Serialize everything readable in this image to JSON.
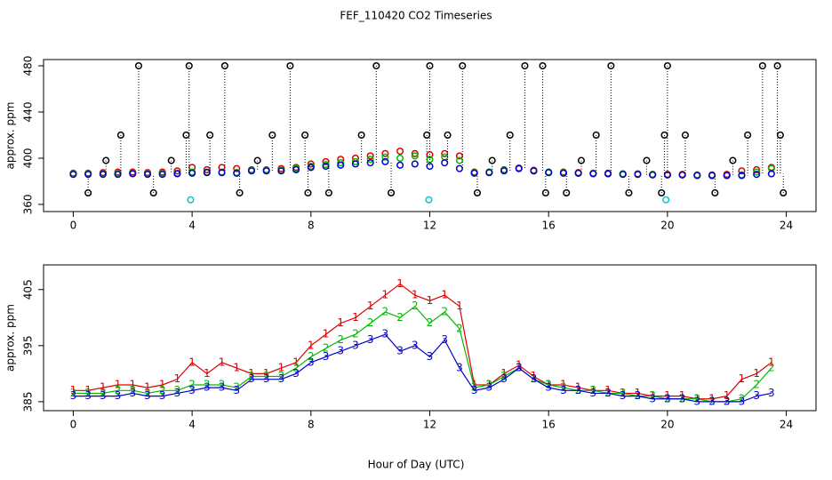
{
  "chart_data": [
    {
      "type": "scatter",
      "title": "FEF_110420  CO2 Timeseries",
      "y_label": "approx. ppm",
      "x": [
        0,
        0.5,
        1,
        1.5,
        2,
        2.5,
        3,
        3.5,
        4,
        4.5,
        5,
        5.5,
        6,
        6.5,
        7,
        7.5,
        8,
        8.5,
        9,
        9.5,
        10,
        10.5,
        11,
        11.5,
        12,
        12.5,
        13,
        13.5,
        14,
        14.5,
        15,
        15.5,
        16,
        16.5,
        17,
        17.5,
        18,
        18.5,
        19,
        19.5,
        20,
        20.5,
        21,
        21.5,
        22,
        22.5,
        23,
        23.5
      ],
      "xlim": [
        -1,
        25
      ],
      "xticks": [
        0,
        4,
        8,
        12,
        16,
        20,
        24
      ],
      "ylim": [
        353.8,
        485.4
      ],
      "yticks": [
        360,
        400,
        440,
        480
      ],
      "series": [
        {
          "color": "#dd0000",
          "values": [
            387,
            387,
            387.5,
            388,
            388,
            387.5,
            388,
            389,
            392,
            390,
            392,
            391,
            390,
            390,
            391,
            392,
            395,
            397,
            399,
            400,
            402,
            404,
            406,
            404,
            403,
            404,
            402,
            388,
            388,
            390,
            391.5,
            389.5,
            388,
            388,
            387.5,
            387,
            387,
            386.5,
            386.5,
            386,
            386,
            386,
            385.5,
            385.5,
            386,
            389,
            390,
            392
          ]
        },
        {
          "color": "#00bb00",
          "values": [
            386.5,
            386.5,
            386.5,
            387,
            387,
            386.5,
            387,
            387,
            388,
            388,
            388,
            387.5,
            389.5,
            389.5,
            389.5,
            391,
            393,
            394.5,
            396,
            397,
            399,
            401,
            400,
            402,
            399,
            401,
            398,
            387.5,
            388,
            389.5,
            391,
            389,
            388,
            387.5,
            387,
            387,
            386.5,
            386.5,
            386,
            386,
            385.5,
            385.5,
            385.5,
            385,
            385,
            385.5,
            388,
            391
          ]
        },
        {
          "color": "#0000cc",
          "values": [
            386,
            386,
            386,
            386,
            386.5,
            386,
            386,
            386.5,
            387,
            387.5,
            387.5,
            387,
            389,
            389,
            389,
            390,
            392,
            393,
            394,
            395,
            396,
            397,
            394,
            395,
            393,
            396,
            391,
            387,
            387.5,
            389,
            391,
            389,
            387.5,
            387,
            387,
            386.5,
            386.5,
            386,
            386,
            385.5,
            385.5,
            385.5,
            385,
            385,
            385,
            385,
            386,
            386.5
          ]
        },
        {
          "color": "#000000",
          "droplines": true,
          "x": [
            0.5,
            1.1,
            1.6,
            2.2,
            2.7,
            3.3,
            3.8,
            3.9,
            4.6,
            5.1,
            5.6,
            6.2,
            6.7,
            7.3,
            7.8,
            7.9,
            8.6,
            9.7,
            10.2,
            10.7,
            11.9,
            12,
            12.6,
            13.1,
            13.6,
            14.1,
            14.7,
            15.2,
            15.8,
            15.9,
            16.6,
            17.1,
            17.6,
            18.1,
            18.7,
            19.3,
            19.8,
            19.9,
            20,
            20.6,
            21.6,
            22.2,
            22.7,
            23.2,
            23.7,
            23.8,
            23.9
          ],
          "values": [
            370,
            398,
            420,
            480,
            370,
            398,
            420,
            480,
            420,
            480,
            370,
            398,
            420,
            480,
            420,
            370,
            370,
            420,
            480,
            370,
            420,
            480,
            420,
            480,
            370,
            398,
            420,
            480,
            480,
            370,
            370,
            398,
            420,
            480,
            370,
            398,
            370,
            420,
            480,
            420,
            370,
            398,
            420,
            480,
            480,
            420,
            370
          ]
        },
        {
          "color": "#00cccc",
          "x": [
            3.95,
            11.97,
            19.95
          ],
          "values": [
            364,
            364,
            364
          ]
        }
      ]
    },
    {
      "type": "line",
      "y_label": "approx. ppm",
      "x_label": "Hour of Day (UTC)",
      "x": [
        0,
        0.5,
        1,
        1.5,
        2,
        2.5,
        3,
        3.5,
        4,
        4.5,
        5,
        5.5,
        6,
        6.5,
        7,
        7.5,
        8,
        8.5,
        9,
        9.5,
        10,
        10.5,
        11,
        11.5,
        12,
        12.5,
        13,
        13.5,
        14,
        14.5,
        15,
        15.5,
        16,
        16.5,
        17,
        17.5,
        18,
        18.5,
        19,
        19.5,
        20,
        20.5,
        21,
        21.5,
        22,
        22.5,
        23,
        23.5
      ],
      "xlim": [
        -1,
        25
      ],
      "xticks": [
        0,
        4,
        8,
        12,
        16,
        20,
        24
      ],
      "ylim": [
        383.4,
        409.4
      ],
      "yticks": [
        385,
        395,
        405
      ],
      "series": [
        {
          "color": "#dd0000",
          "marker": "1",
          "values": [
            387,
            387,
            387.5,
            388,
            388,
            387.5,
            388,
            389,
            392,
            390,
            392,
            391,
            390,
            390,
            391,
            392,
            395,
            397,
            399,
            400,
            402,
            404,
            406,
            404,
            403,
            404,
            402,
            388,
            388,
            390,
            391.5,
            389.5,
            388,
            388,
            387.5,
            387,
            387,
            386.5,
            386.5,
            386,
            386,
            386,
            385.5,
            385.5,
            386,
            389,
            390,
            392
          ]
        },
        {
          "color": "#00bb00",
          "marker": "2",
          "values": [
            386.5,
            386.5,
            386.5,
            387,
            387,
            386.5,
            387,
            387,
            388,
            388,
            388,
            387.5,
            389.5,
            389.5,
            389.5,
            391,
            393,
            394.5,
            396,
            397,
            399,
            401,
            400,
            402,
            399,
            401,
            398,
            387.5,
            388,
            389.5,
            391,
            389,
            388,
            387.5,
            387,
            387,
            386.5,
            386.5,
            386,
            386,
            385.5,
            385.5,
            385.5,
            385,
            385,
            385.5,
            388,
            391
          ]
        },
        {
          "color": "#0000cc",
          "marker": "3",
          "values": [
            386,
            386,
            386,
            386,
            386.5,
            386,
            386,
            386.5,
            387,
            387.5,
            387.5,
            387,
            389,
            389,
            389,
            390,
            392,
            393,
            394,
            395,
            396,
            397,
            394,
            395,
            393,
            396,
            391,
            387,
            387.5,
            389,
            391,
            389,
            387.5,
            387,
            387,
            386.5,
            386.5,
            386,
            386,
            385.5,
            385.5,
            385.5,
            385,
            385,
            385,
            385,
            386,
            386.5
          ]
        }
      ]
    }
  ]
}
